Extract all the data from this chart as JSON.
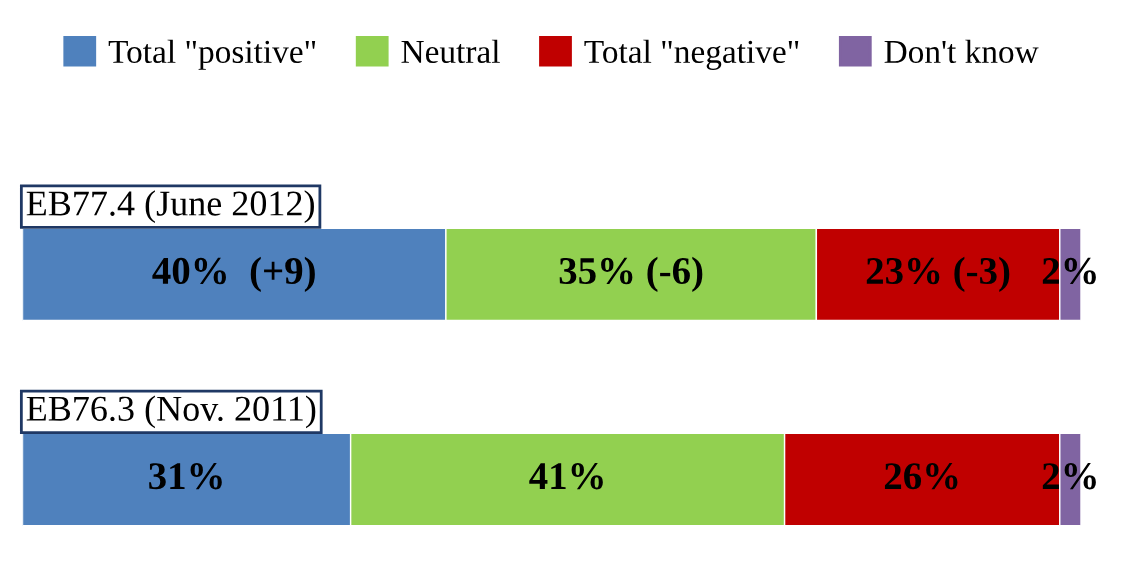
{
  "chart_data": {
    "type": "bar",
    "orientation": "horizontal",
    "stacked": true,
    "legend": "top",
    "tick_labels": "y",
    "categories": [
      "EB77.4 (June 2012)",
      "EB76.3 (Nov. 2011)"
    ],
    "series": [
      {
        "name": "Total \"positive\"",
        "color": "#4f81bd",
        "values": [
          40,
          31
        ],
        "value_labels": [
          "40%  (+9)",
          "31%"
        ]
      },
      {
        "name": "Neutral",
        "color": "#92d050",
        "values": [
          35,
          41
        ],
        "value_labels": [
          "35% (-6)",
          "41%"
        ]
      },
      {
        "name": "Total \"negative\"",
        "color": "#c00000",
        "values": [
          23,
          26
        ],
        "value_labels": [
          "23% (-3)",
          "26%"
        ]
      },
      {
        "name": "Don't know",
        "color": "#8064a2",
        "values": [
          2,
          2
        ],
        "value_labels": [
          "2%",
          "2%"
        ]
      }
    ]
  }
}
